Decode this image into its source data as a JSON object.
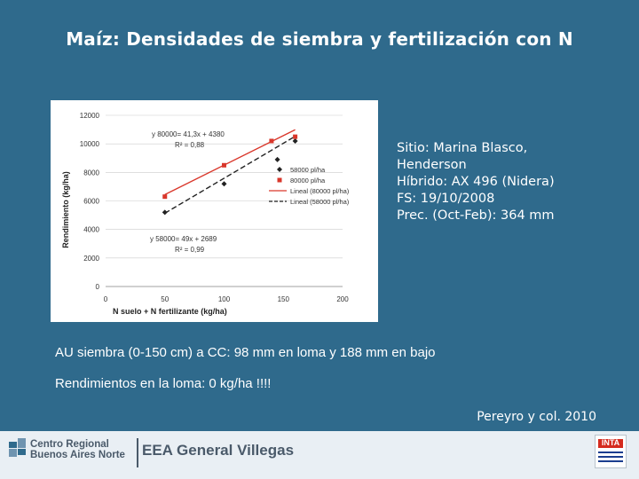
{
  "title": "Maíz:  Densidades de siembra y fertilización con N",
  "chart_data": {
    "type": "scatter",
    "xlabel": "N suelo + N fertilizante (kg/ha)",
    "ylabel": "Rendimiento (kg/ha)",
    "xlim": [
      0,
      200
    ],
    "ylim": [
      0,
      12000
    ],
    "x_ticks": [
      "0",
      "50",
      "100",
      "150",
      "200"
    ],
    "y_ticks": [
      "0",
      "2000",
      "4000",
      "6000",
      "8000",
      "10000",
      "12000"
    ],
    "series": [
      {
        "name": "58000 pl/ha",
        "marker": "diamond",
        "color": "#222222",
        "points": [
          [
            50,
            5200
          ],
          [
            100,
            7200
          ],
          [
            145,
            8900
          ],
          [
            160,
            10200
          ]
        ]
      },
      {
        "name": "80000 pl/ha",
        "marker": "square",
        "color": "#d9372b",
        "points": [
          [
            50,
            6300
          ],
          [
            100,
            8500
          ],
          [
            140,
            10200
          ],
          [
            160,
            10500
          ]
        ]
      }
    ],
    "trendlines": [
      {
        "name": "Lineal (80000 pl/ha)",
        "equation": "y 80000= 41,3x + 4380",
        "r2": "R² = 0,88",
        "slope": 41.3,
        "intercept": 4380,
        "x_range": [
          50,
          160
        ],
        "color": "#d9372b",
        "style": "solid"
      },
      {
        "name": "Lineal (58000 pl/ha)",
        "equation": "y 58000= 49x + 2689",
        "r2": "R² = 0,99",
        "slope": 49,
        "intercept": 2689,
        "x_range": [
          50,
          160
        ],
        "color": "#222222",
        "style": "dashed"
      }
    ],
    "legend": [
      "58000 pl/ha",
      "80000 pl/ha",
      "Lineal (80000 pl/ha)",
      "Lineal (58000 pl/ha)"
    ],
    "legend_position": "right"
  },
  "site_info": [
    "Sitio: Marina Blasco,",
    "Henderson",
    "Híbrido: AX 496 (Nidera)",
    "FS: 19/10/2008",
    "Prec. (Oct-Feb): 364 mm"
  ],
  "notes": [
    "AU siembra (0-150 cm) a CC: 98 mm en loma y 188 mm en bajo",
    "Rendimientos en la loma: 0 kg/ha !!!!"
  ],
  "citation": "Pereyro y col. 2010",
  "footer": {
    "org_line1": "Centro Regional",
    "org_line2": "Buenos Aires Norte",
    "unit": "EEA General Villegas",
    "logo_text": "INTA"
  },
  "colors": {
    "background": "#2f6a8c",
    "series_80000": "#d9372b",
    "series_58000": "#222222"
  }
}
